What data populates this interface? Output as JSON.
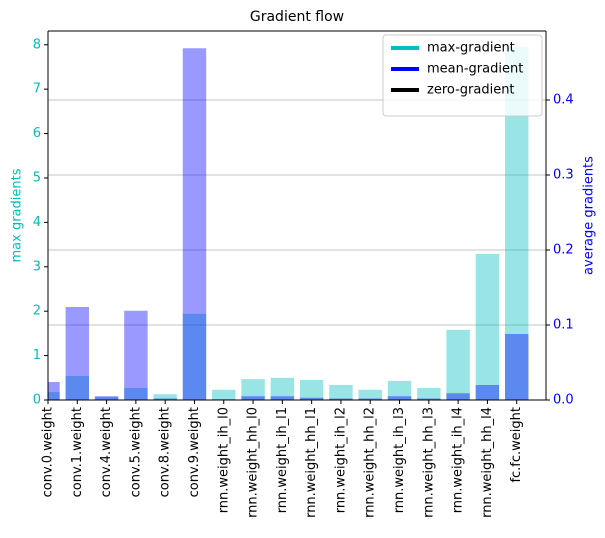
{
  "chart_data": {
    "type": "bar",
    "title": "Gradient flow",
    "y_label": "max gradients",
    "y2_label": "average gradients",
    "categories": [
      "conv.0.weight",
      "conv.1.weight",
      "conv.4.weight",
      "conv.5.weight",
      "conv.8.weight",
      "conv.9.weight",
      "rnn.weight_ih_l0",
      "rnn.weight_hh_l0",
      "rnn.weight_ih_l1",
      "rnn.weight_hh_l1",
      "rnn.weight_ih_l2",
      "rnn.weight_hh_l2",
      "rnn.weight_ih_l3",
      "rnn.weight_hh_l3",
      "rnn.weight_ih_l4",
      "rnn.weight_hh_l4",
      "fc.fc.weight"
    ],
    "series": [
      {
        "name": "max-gradient",
        "color": "#00bfbf",
        "axis": "y",
        "values": [
          0.18,
          0.54,
          0.07,
          0.27,
          0.13,
          1.94,
          0.23,
          0.47,
          0.5,
          0.45,
          0.34,
          0.23,
          0.43,
          0.27,
          1.58,
          3.29,
          7.95
        ]
      },
      {
        "name": "mean-gradient",
        "color": "#0000ff",
        "axis": "y2",
        "values": [
          0.024,
          0.124,
          0.005,
          0.119,
          0.002,
          0.469,
          0.001,
          0.005,
          0.005,
          0.003,
          0.002,
          0.002,
          0.005,
          0.002,
          0.009,
          0.02,
          0.088
        ]
      }
    ],
    "legend_extra": {
      "name": "zero-gradient",
      "color": "#000000"
    },
    "bar_alpha": 0.4,
    "legend": "upper right",
    "ylim": [
      0,
      8.31
    ],
    "yticks": [
      0,
      1,
      2,
      3,
      4,
      5,
      6,
      7,
      8
    ],
    "y2lim": [
      0,
      0.492
    ],
    "y2ticks": [
      {
        "value": 0,
        "label": "0.0"
      },
      {
        "value": 0.1,
        "label": "0.1"
      },
      {
        "value": 0.2,
        "label": "0.2"
      },
      {
        "value": 0.3,
        "label": "0.3"
      },
      {
        "value": 0.4,
        "label": "0.4"
      }
    ],
    "grid": "y2"
  }
}
